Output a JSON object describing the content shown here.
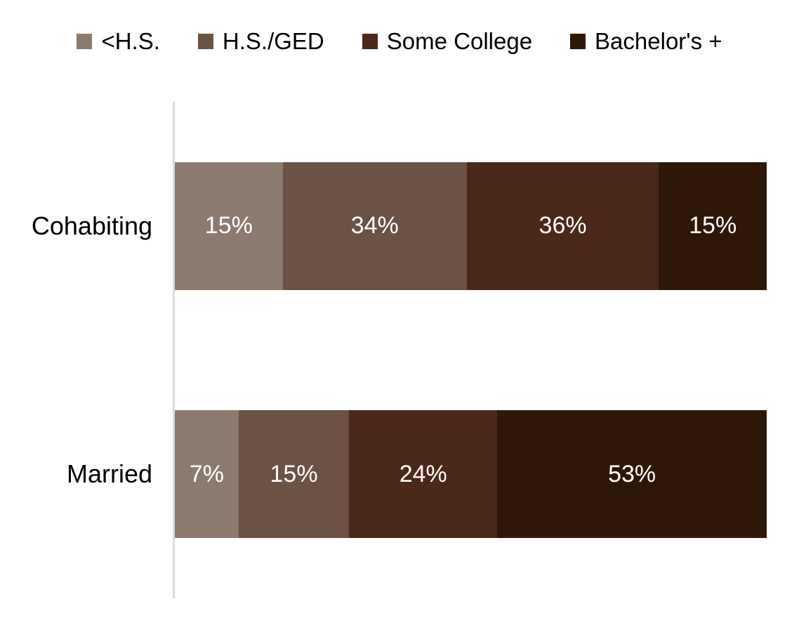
{
  "chart_data": {
    "type": "bar",
    "orientation": "horizontal",
    "stacked": true,
    "unit": "%",
    "categories": [
      "Cohabiting",
      "Married"
    ],
    "series": [
      {
        "name": "<H.S.",
        "color": "#8D7A6E",
        "values": [
          15,
          7
        ]
      },
      {
        "name": "H.S./GED",
        "color": "#6B5244",
        "values": [
          34,
          15
        ]
      },
      {
        "name": "Some College",
        "color": "#4B2817",
        "values": [
          36,
          24
        ]
      },
      {
        "name": "Bachelor's +",
        "color": "#2F1708",
        "values": [
          15,
          53
        ]
      }
    ],
    "data_labels": [
      [
        "15%",
        "34%",
        "36%",
        "15%"
      ],
      [
        "7%",
        "15%",
        "24%",
        "53%"
      ]
    ],
    "xlim": [
      0,
      100
    ],
    "legend_position": "top",
    "grid": false,
    "axis_line_color": "#D9D9D9",
    "data_label_color": "#FFFFFF",
    "category_label_color": "#000000",
    "background": "#FFFFFF"
  }
}
